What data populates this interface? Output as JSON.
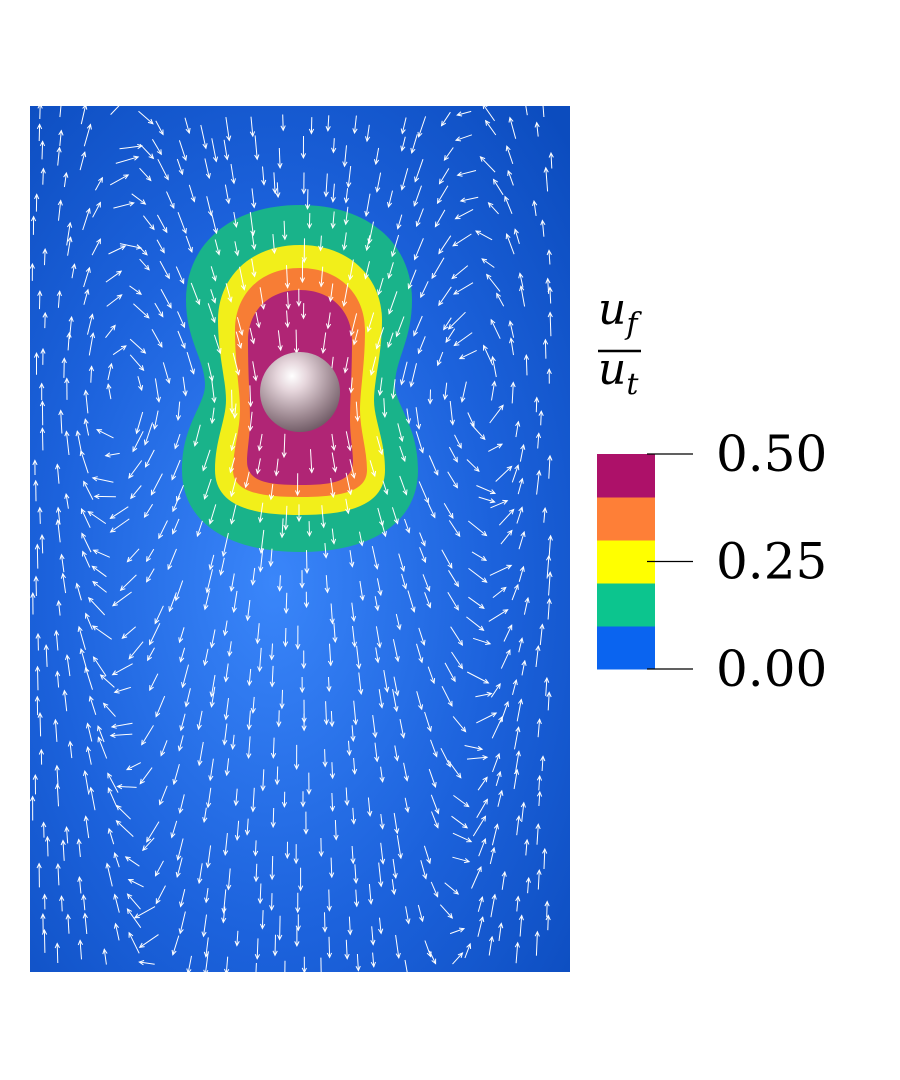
{
  "colorbar": {
    "title_numerator": "u",
    "title_numerator_sub": "f",
    "title_denominator": "u",
    "title_denominator_sub": "t",
    "bands": [
      {
        "color": "#0a64f0"
      },
      {
        "color": "#0cc58e"
      },
      {
        "color": "#ffff00"
      },
      {
        "color": "#fe7f37"
      },
      {
        "color": "#ad1169"
      }
    ],
    "ticks": [
      {
        "label": "0.50",
        "value": 0.5
      },
      {
        "label": "0.25",
        "value": 0.25
      },
      {
        "label": "0.00",
        "value": 0.0
      }
    ],
    "range": [
      0,
      0.5
    ]
  },
  "field": {
    "background_color": "#1a5ad8",
    "arrow_color": "#ffffff",
    "contours": [
      {
        "level": 0.1,
        "color": "#19b38a"
      },
      {
        "level": 0.2,
        "color": "#f2ef1a"
      },
      {
        "level": 0.3,
        "color": "#f77d35"
      },
      {
        "level": 0.4,
        "color": "#b02575"
      }
    ],
    "sphere_color": "#cdb5be"
  }
}
